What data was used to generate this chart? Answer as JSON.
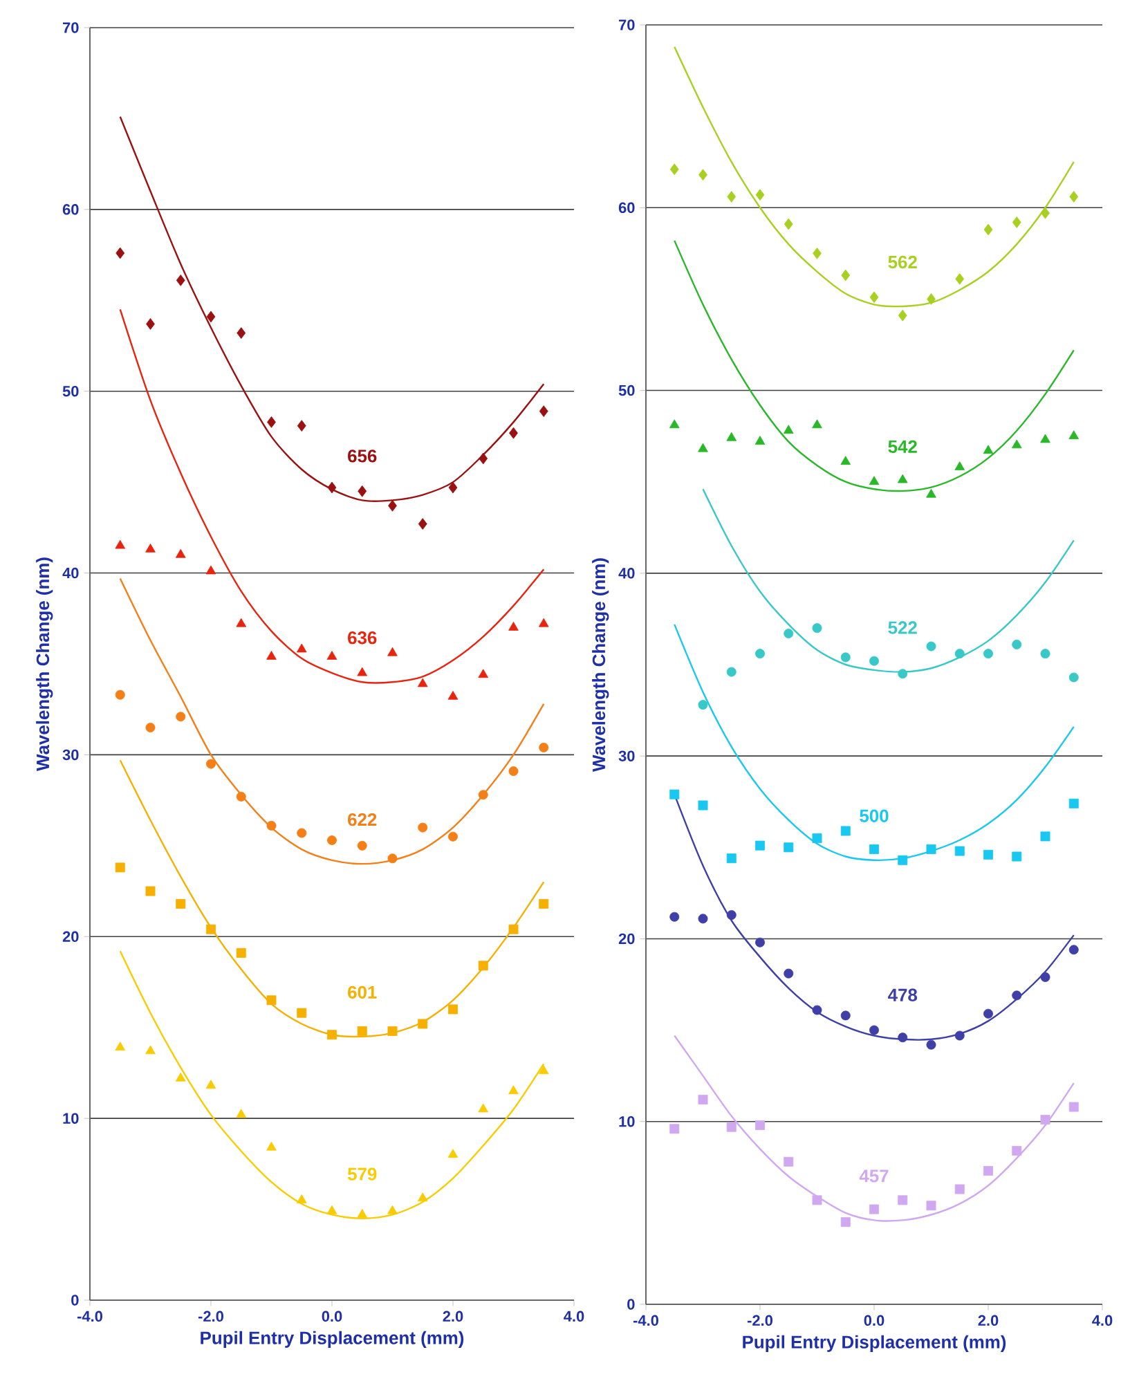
{
  "chart_data": [
    {
      "type": "scatter",
      "xlabel": "Pupil Entry Displacement (mm)",
      "ylabel": "Wavelength Change (nm)",
      "x": [
        -3.5,
        -3.0,
        -2.5,
        -2.0,
        -1.5,
        -1.0,
        -0.5,
        0.0,
        0.5,
        1.0,
        1.5,
        2.0,
        2.5,
        3.0,
        3.5
      ],
      "xlim": [
        -4,
        4
      ],
      "xticks": [
        {
          "value": -4,
          "label": "-4.0"
        },
        {
          "value": -2,
          "label": "-2.0"
        },
        {
          "value": 0,
          "label": "0.0"
        },
        {
          "value": 2,
          "label": "2.0"
        },
        {
          "value": 4,
          "label": "4.0"
        }
      ],
      "ylim": [
        0,
        70
      ],
      "yticks": [
        0,
        10,
        20,
        30,
        40,
        50,
        60,
        70
      ],
      "grid": "y",
      "series": [
        {
          "type": "scatter",
          "marker": "diamond",
          "color": "#9b1010",
          "values": [
            57.6,
            53.7,
            56.1,
            54.1,
            53.2,
            48.3,
            48.1,
            44.7,
            44.5,
            43.7,
            42.7,
            44.7,
            46.3,
            47.7,
            48.9
          ]
        },
        {
          "type": "line",
          "name": "656",
          "color": "#9b1010",
          "values": [
            65.1,
            61.0,
            57.0,
            53.5,
            50.3,
            47.5,
            45.7,
            44.6,
            44.0,
            44.0,
            44.3,
            45.0,
            46.5,
            48.3,
            50.4
          ]
        },
        {
          "type": "scatter",
          "marker": "triangle",
          "color": "#e8240f",
          "values": [
            41.5,
            41.3,
            41.0,
            40.1,
            37.2,
            35.4,
            35.8,
            35.4,
            34.5,
            35.6,
            33.9,
            33.2,
            34.4,
            37.0,
            37.2
          ]
        },
        {
          "type": "line",
          "name": "636",
          "color": "#e8240f",
          "values": [
            54.5,
            49.5,
            45.5,
            42.0,
            39.0,
            36.8,
            35.3,
            34.5,
            34.0,
            34.0,
            34.3,
            35.2,
            36.5,
            38.2,
            40.2
          ]
        },
        {
          "type": "scatter",
          "marker": "circle",
          "color": "#f57f17",
          "values": [
            33.3,
            31.5,
            32.1,
            29.5,
            27.7,
            26.1,
            25.7,
            25.3,
            25.0,
            24.3,
            26.0,
            25.5,
            27.8,
            29.1,
            30.4
          ]
        },
        {
          "type": "line",
          "name": "622",
          "color": "#f57f17",
          "values": [
            39.7,
            36.3,
            33.2,
            30.0,
            27.8,
            26.0,
            24.8,
            24.2,
            24.0,
            24.2,
            24.8,
            26.0,
            27.8,
            30.0,
            32.8
          ]
        },
        {
          "type": "scatter",
          "marker": "square",
          "color": "#f5b000",
          "values": [
            23.8,
            22.5,
            21.8,
            20.4,
            19.1,
            16.5,
            15.8,
            14.6,
            14.8,
            14.8,
            15.2,
            16.0,
            18.4,
            20.4,
            21.8
          ]
        },
        {
          "type": "line",
          "name": "601",
          "color": "#f5b000",
          "values": [
            29.7,
            26.4,
            23.3,
            20.5,
            18.2,
            16.3,
            15.2,
            14.6,
            14.5,
            14.7,
            15.3,
            16.5,
            18.3,
            20.5,
            23.0
          ]
        },
        {
          "type": "scatter",
          "marker": "triangle",
          "color": "#f8cc00",
          "values": [
            13.9,
            13.7,
            12.2,
            11.8,
            10.2,
            8.4,
            5.5,
            4.9,
            4.7,
            4.9,
            5.6,
            8.0,
            10.5,
            11.5,
            12.6
          ]
        },
        {
          "type": "line",
          "name": "579",
          "color": "#f8cc00",
          "values": [
            19.2,
            15.8,
            12.8,
            10.2,
            8.2,
            6.5,
            5.3,
            4.7,
            4.5,
            4.7,
            5.4,
            6.7,
            8.5,
            10.5,
            13.0
          ]
        }
      ]
    },
    {
      "type": "scatter",
      "xlabel": "Pupil Entry Displacement (mm)",
      "ylabel": "Wavelength Change (nm)",
      "x": [
        -3.5,
        -3.0,
        -2.5,
        -2.0,
        -1.5,
        -1.0,
        -0.5,
        0.0,
        0.5,
        1.0,
        1.5,
        2.0,
        2.5,
        3.0,
        3.5
      ],
      "xlim": [
        -4,
        4
      ],
      "xticks": [
        {
          "value": -4,
          "label": "-4.0"
        },
        {
          "value": -2,
          "label": "-2.0"
        },
        {
          "value": 0,
          "label": "0.0"
        },
        {
          "value": 2,
          "label": "2.0"
        },
        {
          "value": 4,
          "label": "4.0"
        }
      ],
      "ylim": [
        0,
        70
      ],
      "yticks": [
        0,
        10,
        20,
        30,
        40,
        50,
        60,
        70
      ],
      "grid": "y",
      "series": [
        {
          "type": "scatter",
          "marker": "diamond",
          "color": "#a8d020",
          "values": [
            62.1,
            61.8,
            60.6,
            60.7,
            59.1,
            57.5,
            56.3,
            55.1,
            54.1,
            55.0,
            56.1,
            58.8,
            59.2,
            59.7,
            60.6
          ]
        },
        {
          "type": "line",
          "name": "562",
          "color": "#a8d020",
          "values": [
            68.8,
            65.5,
            62.5,
            60.0,
            58.0,
            56.5,
            55.3,
            54.7,
            54.6,
            54.8,
            55.5,
            56.5,
            58.0,
            60.0,
            62.5
          ]
        },
        {
          "type": "scatter",
          "marker": "triangle",
          "color": "#28b828",
          "values": [
            48.1,
            46.8,
            47.4,
            47.2,
            47.8,
            48.1,
            46.1,
            45.0,
            45.1,
            44.3,
            45.8,
            46.7,
            47.0,
            47.3,
            47.5
          ]
        },
        {
          "type": "line",
          "name": "542",
          "color": "#28b828",
          "values": [
            58.2,
            54.7,
            51.7,
            49.2,
            47.2,
            45.9,
            45.0,
            44.6,
            44.5,
            44.7,
            45.3,
            46.3,
            47.8,
            49.8,
            52.2
          ]
        },
        {
          "type": "scatter",
          "marker": "circle",
          "color": "#38c8c8",
          "values": [
            null,
            32.8,
            34.6,
            35.6,
            36.7,
            37.0,
            35.4,
            35.2,
            34.5,
            36.0,
            35.6,
            35.6,
            36.1,
            35.6,
            34.3
          ]
        },
        {
          "type": "line",
          "name": "522",
          "color": "#38c8c8",
          "values": [
            null,
            44.6,
            41.5,
            39.0,
            37.2,
            35.8,
            35.0,
            34.7,
            34.6,
            34.8,
            35.4,
            36.3,
            37.7,
            39.5,
            41.8
          ]
        },
        {
          "type": "scatter",
          "marker": "square",
          "color": "#18c8f0",
          "values": [
            27.9,
            27.3,
            24.4,
            25.1,
            25.0,
            25.5,
            25.9,
            24.9,
            24.3,
            24.9,
            24.8,
            24.6,
            24.5,
            25.6,
            27.4
          ]
        },
        {
          "type": "line",
          "name": "500",
          "color": "#18c8f0",
          "values": [
            37.2,
            33.5,
            30.5,
            28.2,
            26.5,
            25.2,
            24.5,
            24.3,
            24.4,
            24.8,
            25.4,
            26.3,
            27.6,
            29.4,
            31.6
          ]
        },
        {
          "type": "scatter",
          "marker": "circle",
          "color": "#3f3fa8",
          "values": [
            21.2,
            21.1,
            21.3,
            19.8,
            18.1,
            16.1,
            15.8,
            15.0,
            14.6,
            14.2,
            14.7,
            15.9,
            16.9,
            17.9,
            19.4
          ]
        },
        {
          "type": "line",
          "name": "478",
          "color": "#3f3fa8",
          "values": [
            27.9,
            24.0,
            21.0,
            19.0,
            17.3,
            16.0,
            15.2,
            14.7,
            14.5,
            14.5,
            14.8,
            15.5,
            16.7,
            18.2,
            20.2
          ]
        },
        {
          "type": "scatter",
          "marker": "square",
          "color": "#d0a8f0",
          "values": [
            9.6,
            11.2,
            9.7,
            9.8,
            7.8,
            5.7,
            4.5,
            5.2,
            5.7,
            5.4,
            6.3,
            7.3,
            8.4,
            10.1,
            10.8
          ]
        },
        {
          "type": "line",
          "name": "457",
          "color": "#d0a8f0",
          "values": [
            14.7,
            12.5,
            10.3,
            8.5,
            7.0,
            5.9,
            5.0,
            4.6,
            4.6,
            4.9,
            5.5,
            6.5,
            8.0,
            9.8,
            12.1
          ]
        }
      ]
    }
  ]
}
